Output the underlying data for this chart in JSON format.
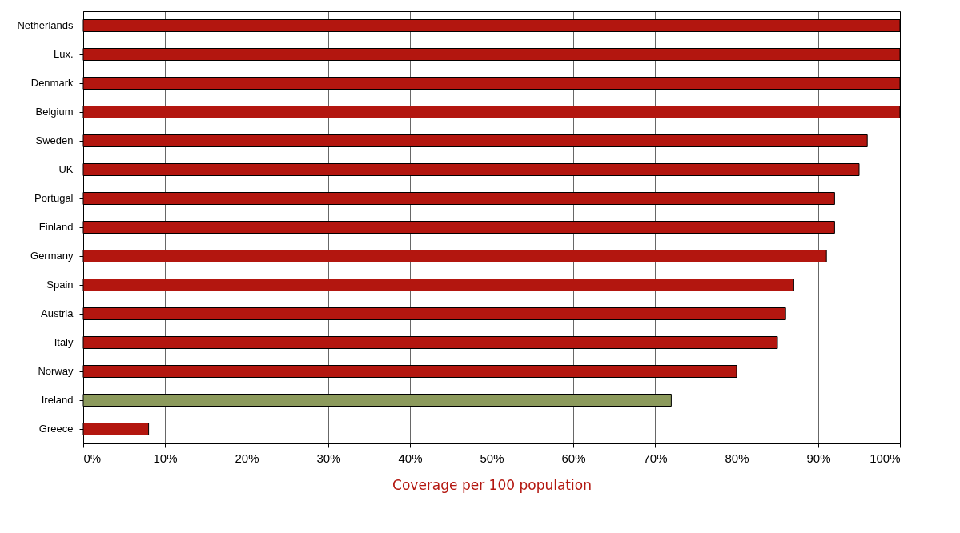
{
  "chart_data": {
    "type": "bar",
    "orientation": "horizontal",
    "categories": [
      "Netherlands",
      "Lux.",
      "Denmark",
      "Belgium",
      "Sweden",
      "UK",
      "Portugal",
      "Finland",
      "Germany",
      "Spain",
      "Austria",
      "Italy",
      "Norway",
      "Ireland",
      "Greece"
    ],
    "values": [
      100,
      100,
      100,
      100,
      96,
      95,
      92,
      92,
      91,
      87,
      86,
      85,
      80,
      72,
      8
    ],
    "colors": [
      "#b3160f",
      "#b3160f",
      "#b3160f",
      "#b3160f",
      "#b3160f",
      "#b3160f",
      "#b3160f",
      "#b3160f",
      "#b3160f",
      "#b3160f",
      "#b3160f",
      "#b3160f",
      "#b3160f",
      "#8c9a5c",
      "#b3160f"
    ],
    "xlabel": "Coverage per 100 population",
    "xlim": [
      0,
      100
    ],
    "xticks": [
      {
        "value": 0,
        "label": "0%"
      },
      {
        "value": 10,
        "label": "10%"
      },
      {
        "value": 20,
        "label": "20%"
      },
      {
        "value": 30,
        "label": "30%"
      },
      {
        "value": 40,
        "label": "40%"
      },
      {
        "value": 50,
        "label": "50%"
      },
      {
        "value": 60,
        "label": "60%"
      },
      {
        "value": 70,
        "label": "70%"
      },
      {
        "value": 80,
        "label": "80%"
      },
      {
        "value": 90,
        "label": "90%"
      },
      {
        "value": 100,
        "label": "100%"
      }
    ],
    "grid": "x"
  }
}
